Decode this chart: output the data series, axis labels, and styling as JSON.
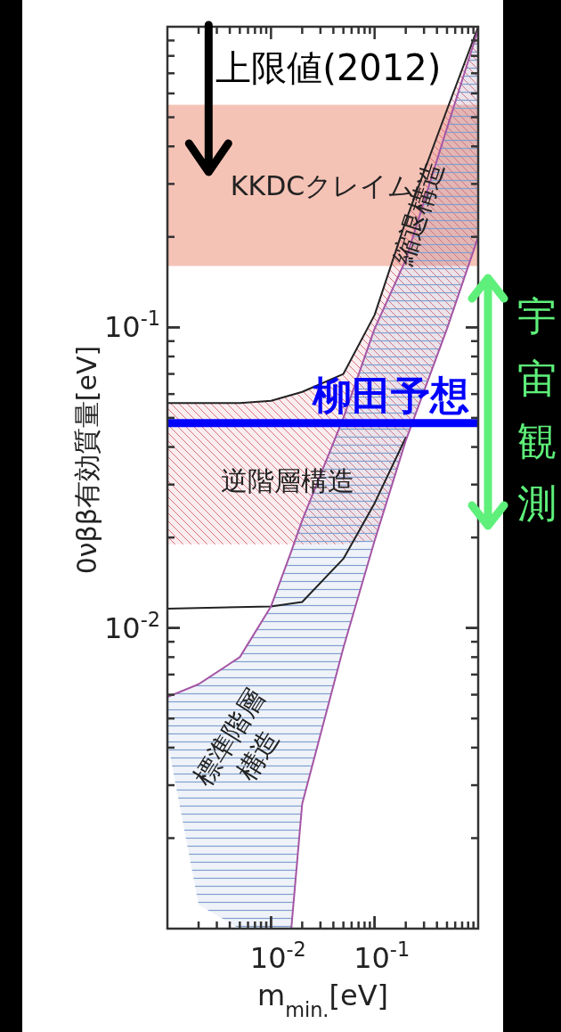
{
  "chart_data": {
    "type": "line",
    "xlabel": "m$_{min.}$[eV]",
    "ylabel": "0νββ有効質量[eV]",
    "log": "xy",
    "xlim": [
      0.001,
      1
    ],
    "ylim": [
      0.001,
      1
    ],
    "xticks": [
      {
        "value": 0.01,
        "label": "10$^{-2}$"
      },
      {
        "value": 0.1,
        "label": "10$^{-1}$"
      }
    ],
    "yticks": [
      {
        "value": 0.01,
        "label": "10$^{-2}$"
      },
      {
        "value": 0.1,
        "label": "10$^{-1}$"
      }
    ],
    "series": [
      {
        "color": "#222222",
        "x": [
          0.001,
          0.002,
          0.005,
          0.01,
          0.02,
          0.05,
          0.1,
          0.2,
          0.5,
          1
        ],
        "values": [
          0.056,
          0.056,
          0.056,
          0.057,
          0.061,
          0.07,
          0.11,
          0.226,
          0.53,
          1
        ],
        "upper": [
          0.056,
          0.056,
          0.056,
          0.057,
          0.061,
          0.07,
          0.11,
          0.226,
          0.53,
          1
        ],
        "lower": [
          0.019,
          0.019,
          0.019,
          0.019,
          0.019,
          0.019,
          0.0195,
          0.042,
          0.099,
          0.2
        ]
      },
      {
        "color": "#222222",
        "x": [
          0.001,
          0.01,
          0.02,
          0.05,
          0.1,
          0.2
        ],
        "values": [
          0.0116,
          0.0118,
          0.0122,
          0.017,
          0.026,
          0.043
        ]
      },
      {
        "color": "#a555a5",
        "x": [
          0.001,
          0.002,
          0.005,
          0.01,
          0.0157,
          0.02,
          0.05,
          0.1,
          0.2,
          0.5,
          1
        ],
        "values": [
          0.0059,
          0.0065,
          0.008,
          0.0118,
          0.018,
          0.0228,
          0.05,
          0.099,
          0.168,
          0.46,
          0.98
        ],
        "upper": [
          0.0059,
          0.0065,
          0.008,
          0.0118,
          0.018,
          0.0228,
          0.05,
          0.099,
          0.168,
          0.46,
          0.98
        ],
        "lower": [
          0.0042,
          0.0012,
          0.001,
          0.001,
          0.001,
          0.0026,
          0.0086,
          0.0195,
          0.042,
          0.099,
          0.2
        ]
      },
      {
        "color": "#a555a5",
        "x": [
          0.0157,
          0.02,
          0.05,
          0.1,
          0.2,
          0.5,
          1
        ],
        "values": [
          0.001,
          0.0026,
          0.0086,
          0.0195,
          0.042,
          0.099,
          0.2
        ]
      }
    ],
    "bands": [
      {
        "axis": "y",
        "from": 0.16,
        "to": 0.55,
        "label": "KKDCクレイム",
        "color": "#f5c3b6"
      }
    ],
    "ref_lines": [
      {
        "axis": "y",
        "value": 0.048,
        "label": "柳田予想",
        "color": "#0000ff"
      }
    ],
    "annotations": [
      "上限値(2012)",
      "宇宙観測",
      "逆階層構造",
      "標準階層構造",
      {
        "text": "縮退構造",
        "x": 0.266,
        "y": 0.24
      }
    ],
    "grid": false,
    "marker": "none",
    "line_style": "solid"
  }
}
